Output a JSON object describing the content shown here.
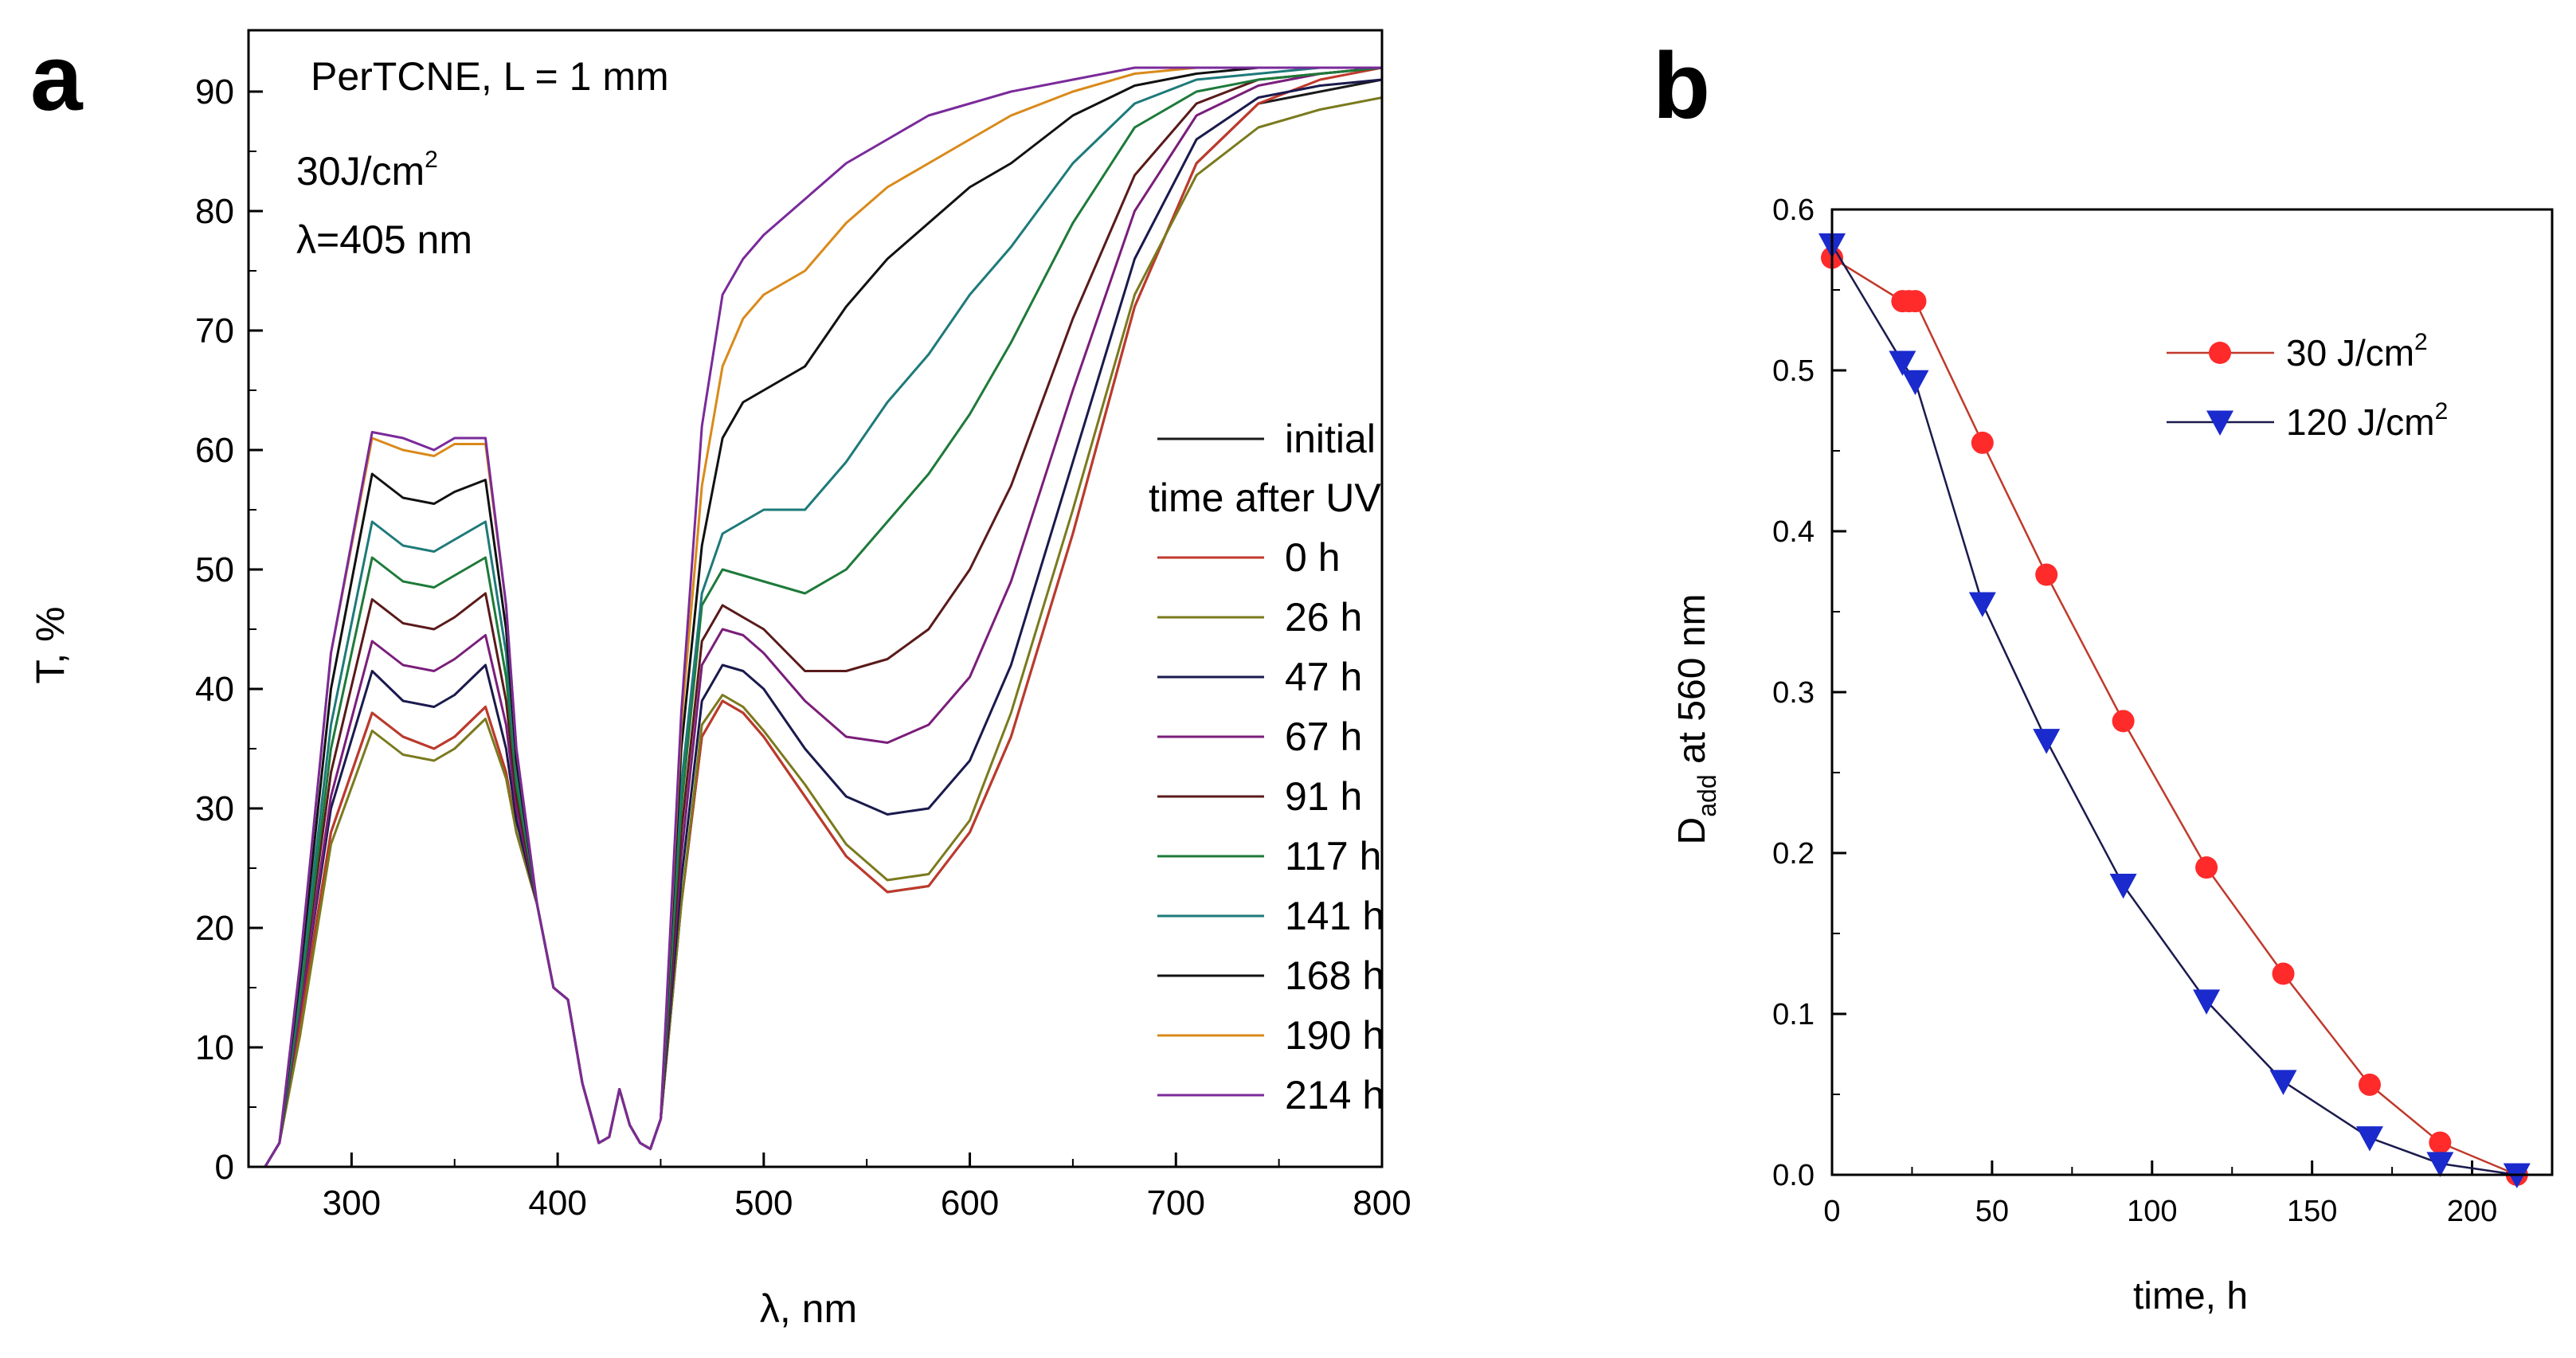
{
  "panel_a": {
    "label": "a",
    "annotation": "PerTCNE, L = 1 mm",
    "dose_value": "30J/cm",
    "dose_sup": "2",
    "wavelength_text": "λ=405 nm",
    "legend_initial": "initial",
    "legend_header": "time after UV"
  },
  "panel_b": {
    "label": "b",
    "ylabel_main": "D",
    "ylabel_sub": "add",
    "ylabel_rest": " at 560 nm"
  },
  "chart_data": [
    {
      "type": "line",
      "title": "",
      "xlabel": "λ, nm",
      "ylabel": "T, %",
      "xlim": [
        250,
        800
      ],
      "ylim": [
        0,
        95
      ],
      "xticks": [
        300,
        400,
        500,
        600,
        700,
        800
      ],
      "yticks": [
        0,
        10,
        20,
        30,
        40,
        50,
        60,
        70,
        80,
        90
      ],
      "legend_position": "right-middle",
      "x": [
        250,
        258,
        265,
        275,
        290,
        310,
        325,
        340,
        345,
        350,
        365,
        375,
        380,
        390,
        398,
        405,
        412,
        420,
        425,
        430,
        435,
        440,
        445,
        450,
        460,
        470,
        480,
        490,
        500,
        520,
        540,
        560,
        580,
        600,
        620,
        650,
        680,
        710,
        740,
        770,
        800
      ],
      "series": [
        {
          "name": "initial",
          "color": "#1a1a1a",
          "values": [
            0,
            0,
            2,
            12,
            28,
            38,
            36,
            35,
            35.5,
            36,
            38.5,
            33,
            28,
            22,
            15,
            14,
            7,
            2,
            2.5,
            6.5,
            3.5,
            2,
            1.5,
            4,
            22,
            36,
            39,
            38,
            36,
            31,
            26,
            23,
            23.5,
            28,
            36,
            53,
            72,
            84,
            89,
            90,
            91
          ]
        },
        {
          "name": "0 h",
          "color": "#c0392b",
          "values": [
            0,
            0,
            2,
            12,
            28,
            38,
            36,
            35,
            35.5,
            36,
            38.5,
            33,
            28,
            22,
            15,
            14,
            7,
            2,
            2.5,
            6.5,
            3.5,
            2,
            1.5,
            4,
            22,
            36,
            39,
            38,
            36,
            31,
            26,
            23,
            23.5,
            28,
            36,
            53,
            72,
            84,
            89,
            91,
            92
          ]
        },
        {
          "name": "26 h",
          "color": "#7a7a1e",
          "values": [
            0,
            0,
            2,
            11,
            27,
            36.5,
            34.5,
            34,
            34.5,
            35,
            37.5,
            32.5,
            28,
            22,
            15,
            14,
            7,
            2,
            2.5,
            6.5,
            3.5,
            2,
            1.5,
            4,
            22,
            37,
            39.5,
            38.5,
            36.5,
            32,
            27,
            24,
            24.5,
            29,
            38,
            55,
            73,
            83,
            87,
            88.5,
            89.5
          ]
        },
        {
          "name": "47 h",
          "color": "#1a1a4d",
          "values": [
            0,
            0,
            2,
            13,
            30,
            41.5,
            39,
            38.5,
            39,
            39.5,
            42,
            35,
            29,
            22,
            15,
            14,
            7,
            2,
            2.5,
            6.5,
            3.5,
            2,
            1.5,
            4,
            24,
            39,
            42,
            41.5,
            40,
            35,
            31,
            29.5,
            30,
            34,
            42,
            59,
            76,
            86,
            89.5,
            90.5,
            91
          ]
        },
        {
          "name": "67 h",
          "color": "#7a1e7a",
          "values": [
            0,
            0,
            2,
            13,
            31,
            44,
            42,
            41.5,
            42,
            42.5,
            44.5,
            37,
            30,
            22,
            15,
            14,
            7,
            2,
            2.5,
            6.5,
            3.5,
            2,
            1.5,
            4,
            26,
            42,
            45,
            44.5,
            43,
            39,
            36,
            35.5,
            37,
            41,
            49,
            65,
            80,
            88,
            90.5,
            91.5,
            92
          ]
        },
        {
          "name": "91 h",
          "color": "#5a1a1a",
          "values": [
            0,
            0,
            2,
            14,
            33,
            47.5,
            45.5,
            45,
            45.5,
            46,
            48,
            39,
            31,
            22,
            15,
            14,
            7,
            2,
            2.5,
            6.5,
            3.5,
            2,
            1.5,
            4,
            28,
            44,
            47,
            46,
            45,
            41.5,
            41.5,
            42.5,
            45,
            50,
            57,
            71,
            83,
            89,
            91,
            91.5,
            92
          ]
        },
        {
          "name": "117 h",
          "color": "#1e7a3a",
          "values": [
            0,
            0,
            2,
            14,
            35,
            51,
            49,
            48.5,
            49,
            49.5,
            51,
            41,
            32,
            22,
            15,
            14,
            7,
            2,
            2.5,
            6.5,
            3.5,
            2,
            1.5,
            4,
            30,
            47,
            50,
            49.5,
            49,
            48,
            50,
            54,
            58,
            63,
            69,
            79,
            87,
            90,
            91,
            91.5,
            92
          ]
        },
        {
          "name": "141 h",
          "color": "#1e7a7a",
          "values": [
            0,
            0,
            2,
            15,
            37,
            54,
            52,
            51.5,
            52,
            52.5,
            54,
            43,
            33,
            22,
            15,
            14,
            7,
            2,
            2.5,
            6.5,
            3.5,
            2,
            1.5,
            4,
            32,
            48,
            53,
            54,
            55,
            55,
            59,
            64,
            68,
            73,
            77,
            84,
            89,
            91,
            91.5,
            92,
            92
          ]
        },
        {
          "name": "168 h",
          "color": "#111111",
          "values": [
            0,
            0,
            2,
            16,
            40,
            58,
            56,
            55.5,
            56,
            56.5,
            57.5,
            45,
            34,
            22,
            15,
            14,
            7,
            2,
            2.5,
            6.5,
            3.5,
            2,
            1.5,
            4,
            35,
            52,
            61,
            64,
            65,
            67,
            72,
            76,
            79,
            82,
            84,
            88,
            90.5,
            91.5,
            92,
            92,
            92
          ]
        },
        {
          "name": "190 h",
          "color": "#d98a1a",
          "values": [
            0,
            0,
            2,
            17,
            43,
            61,
            60,
            59.5,
            60,
            60.5,
            60.5,
            47,
            35,
            22,
            15,
            14,
            7,
            2,
            2.5,
            6.5,
            3.5,
            2,
            1.5,
            4,
            37,
            57,
            67,
            71,
            73,
            75,
            79,
            82,
            84,
            86,
            88,
            90,
            91.5,
            92,
            92,
            92,
            92
          ]
        },
        {
          "name": "214 h",
          "color": "#7a2a9a",
          "values": [
            0,
            0,
            2,
            17,
            43,
            61.5,
            61,
            60,
            60.5,
            61,
            61,
            47,
            35,
            22,
            15,
            14,
            7,
            2,
            2.5,
            6.5,
            3.5,
            2,
            1.5,
            4,
            38,
            62,
            73,
            76,
            78,
            81,
            84,
            86,
            88,
            89,
            90,
            91,
            92,
            92,
            92,
            92,
            92
          ]
        }
      ]
    },
    {
      "type": "line",
      "title": "",
      "xlabel": "time, h",
      "ylabel": "Dadd at 560 nm",
      "xlim": [
        0,
        225
      ],
      "ylim": [
        0,
        0.6
      ],
      "xticks": [
        0,
        50,
        100,
        150,
        200
      ],
      "yticks": [
        0.0,
        0.1,
        0.2,
        0.3,
        0.4,
        0.5,
        0.6
      ],
      "ytick_labels": [
        "0.0",
        "0.1",
        "0.2",
        "0.3",
        "0.4",
        "0.5",
        "0.6"
      ],
      "legend_position": "top-right",
      "series": [
        {
          "name": "30 J/cm",
          "name_sup": "2",
          "marker": "circle",
          "color": "#ff2a2a",
          "line_color": "#c0392b",
          "x": [
            0,
            22,
            24,
            26,
            47,
            67,
            91,
            117,
            141,
            168,
            190,
            214
          ],
          "values": [
            0.57,
            0.543,
            0.543,
            0.543,
            0.455,
            0.373,
            0.282,
            0.191,
            0.125,
            0.056,
            0.02,
            0.0
          ]
        },
        {
          "name": "120 J/cm",
          "name_sup": "2",
          "marker": "triangle-down",
          "color": "#1a2acc",
          "line_color": "#1a1a4d",
          "x": [
            0,
            22,
            26,
            47,
            67,
            91,
            117,
            141,
            168,
            190,
            214
          ],
          "values": [
            0.578,
            0.505,
            0.493,
            0.355,
            0.27,
            0.18,
            0.108,
            0.058,
            0.023,
            0.007,
            0.0
          ]
        }
      ]
    }
  ]
}
